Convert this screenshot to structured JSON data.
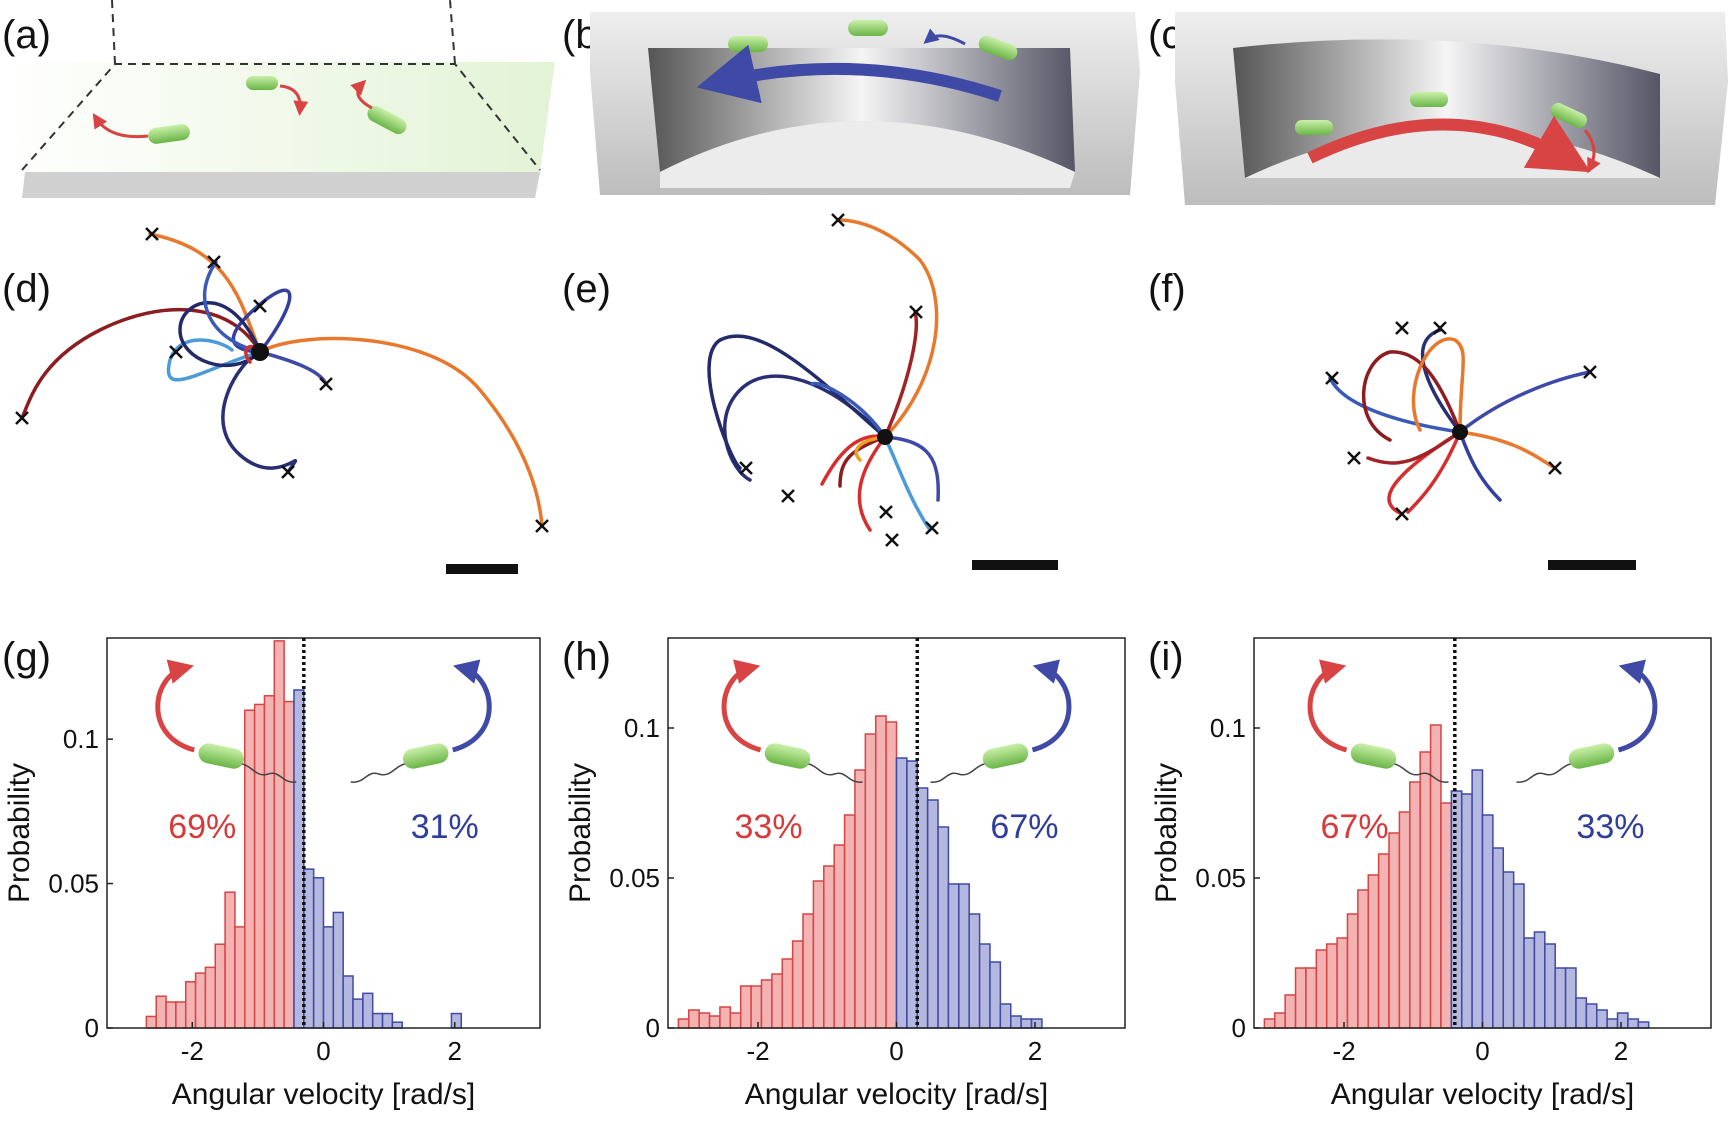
{
  "panel_labels": [
    "(a)",
    "(b)",
    "(c)",
    "(d)",
    "(e)",
    "(f)",
    "(g)",
    "(h)",
    "(i)"
  ],
  "colors": {
    "red_fill": "#f4b3b3",
    "red_stroke": "#d84343",
    "blue_fill": "#b4b7de",
    "blue_stroke": "#3f49a6",
    "red_text": "#d63a3a",
    "blue_text": "#2f3d9c",
    "bacterium": "#8fd16a",
    "chamber": "#d9d9d9"
  },
  "icons": [
    "bacterium-icon",
    "rotation-arrow-icon",
    "crossmark-icon",
    "scale-bar-icon"
  ],
  "chart_data": [
    {
      "type": "bar",
      "panel": "(g)",
      "xlabel": "Angular velocity [rad/s]",
      "ylabel": "Probability",
      "xlim": [
        -3.3,
        3.3
      ],
      "ylim": [
        0,
        0.135
      ],
      "xticks": [
        -2,
        0,
        2
      ],
      "yticks": [
        0,
        0.05,
        0.1
      ],
      "xtick_labels": [
        "-2",
        "0",
        "2"
      ],
      "ytick_labels": [
        "0",
        "0.05",
        "0.1"
      ],
      "bin_width": 0.15,
      "x_start": -2.7,
      "values": [
        0.004,
        0.011,
        0.009,
        0.009,
        0.016,
        0.019,
        0.021,
        0.029,
        0.047,
        0.035,
        0.11,
        0.112,
        0.115,
        0.134,
        0.113,
        0.117,
        0.055,
        0.052,
        0.035,
        0.04,
        0.018,
        0.01,
        0.012,
        0.005,
        0.005,
        0.002,
        0,
        0,
        0,
        0,
        0,
        0.005
      ],
      "split_index": 15,
      "mean": -0.3,
      "left_percent": "69%",
      "right_percent": "31%"
    },
    {
      "type": "bar",
      "panel": "(h)",
      "xlabel": "Angular velocity [rad/s]",
      "ylabel": "Probability",
      "xlim": [
        -3.3,
        3.3
      ],
      "ylim": [
        0,
        0.13
      ],
      "xticks": [
        -2,
        0,
        2
      ],
      "yticks": [
        0,
        0.05,
        0.1
      ],
      "xtick_labels": [
        "-2",
        "0",
        "2"
      ],
      "ytick_labels": [
        "0",
        "0.05",
        "0.1"
      ],
      "bin_width": 0.15,
      "x_start": -3.15,
      "values": [
        0.003,
        0.006,
        0.005,
        0.004,
        0.007,
        0.005,
        0.014,
        0.014,
        0.016,
        0.018,
        0.023,
        0.029,
        0.038,
        0.049,
        0.054,
        0.061,
        0.071,
        0.086,
        0.098,
        0.104,
        0.102,
        0.09,
        0.089,
        0.08,
        0.076,
        0.067,
        0.048,
        0.048,
        0.038,
        0.028,
        0.022,
        0.008,
        0.004,
        0.003,
        0.003
      ],
      "split_index": 21,
      "mean": 0.3,
      "left_percent": "33%",
      "right_percent": "67%"
    },
    {
      "type": "bar",
      "panel": "(i)",
      "xlabel": "Angular velocity [rad/s]",
      "ylabel": "Probability",
      "xlim": [
        -3.3,
        3.3
      ],
      "ylim": [
        0,
        0.13
      ],
      "xticks": [
        -2,
        0,
        2
      ],
      "yticks": [
        0,
        0.05,
        0.1
      ],
      "xtick_labels": [
        "-2",
        "0",
        "2"
      ],
      "ytick_labels": [
        "0",
        "0.05",
        "0.1"
      ],
      "bin_width": 0.15,
      "x_start": -3.15,
      "values": [
        0.003,
        0.005,
        0.011,
        0.02,
        0.02,
        0.026,
        0.028,
        0.03,
        0.038,
        0.046,
        0.051,
        0.058,
        0.065,
        0.072,
        0.082,
        0.092,
        0.101,
        0.075,
        0.079,
        0.078,
        0.086,
        0.071,
        0.06,
        0.052,
        0.048,
        0.03,
        0.032,
        0.028,
        0.02,
        0.02,
        0.01,
        0.008,
        0.006,
        0.003,
        0.005,
        0.003,
        0.002
      ],
      "split_index": 18,
      "mean": -0.4,
      "left_percent": "67%",
      "right_percent": "33%"
    }
  ]
}
